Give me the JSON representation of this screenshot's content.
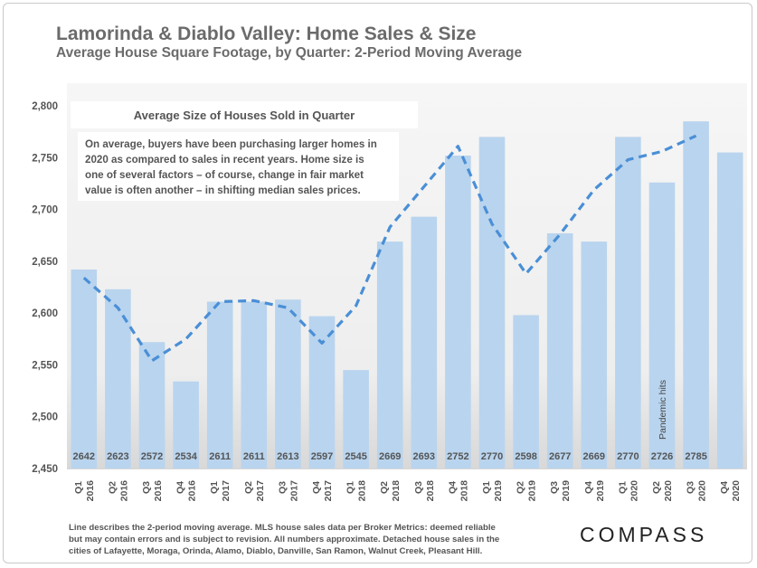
{
  "header": {
    "title": "Lamorinda & Diablo Valley: Home Sales & Size",
    "subtitle": "Average House Square Footage, by Quarter: 2-Period Moving Average"
  },
  "annotation": {
    "heading": "Average Size of Houses Sold in Quarter",
    "lines": [
      "On average, buyers have been purchasing larger homes in",
      "2020 as compared to sales in recent years. Home size is",
      "one of several factors – of course, change in fair market",
      "value is often another – in shifting median sales prices."
    ],
    "event_label": "Pandemic hits"
  },
  "footer": {
    "note_lines": [
      "Line describes the 2-period moving average. MLS house sales data per Broker Metrics:  deemed reliable",
      "but may contain errors and is subject to revision. All numbers approximate. Detached house sales in the",
      "cities of Lafayette, Moraga, Orinda, Alamo, Diablo, Danville, San Ramon, Walnut Creek, Pleasant Hill."
    ],
    "logo": "COMPASS"
  },
  "colors": {
    "bar": "#b9d4ee",
    "line": "#4a8fd6",
    "plot_bg": "#f2f2f2",
    "text": "#6b6b6b"
  },
  "chart_data": {
    "type": "bar",
    "categories": [
      [
        "Q1",
        "2016"
      ],
      [
        "Q2",
        "2016"
      ],
      [
        "Q3",
        "2016"
      ],
      [
        "Q4",
        "2016"
      ],
      [
        "Q1",
        "2017"
      ],
      [
        "Q2",
        "2017"
      ],
      [
        "Q3",
        "2017"
      ],
      [
        "Q4",
        "2017"
      ],
      [
        "Q1",
        "2018"
      ],
      [
        "Q2",
        "2018"
      ],
      [
        "Q3",
        "2018"
      ],
      [
        "Q4",
        "2018"
      ],
      [
        "Q1",
        "2019"
      ],
      [
        "Q2",
        "2019"
      ],
      [
        "Q3",
        "2019"
      ],
      [
        "Q4",
        "2019"
      ],
      [
        "Q1",
        "2020"
      ],
      [
        "Q2",
        "2020"
      ],
      [
        "Q3",
        "2020"
      ],
      [
        "Q4",
        "2020"
      ]
    ],
    "values": [
      2642,
      2623,
      2572,
      2534,
      2611,
      2611,
      2613,
      2597,
      2545,
      2669,
      2693,
      2752,
      2770,
      2598,
      2677,
      2669,
      2770,
      2726,
      2785,
      2755
    ],
    "data_labels": [
      "2642",
      "2623",
      "2572",
      "2534",
      "2611",
      "2611",
      "2613",
      "2597",
      "2545",
      "2669",
      "2693",
      "2752",
      "2770",
      "2598",
      "2677",
      "2669",
      "2770",
      "2726",
      "2785",
      ""
    ],
    "moving_average": {
      "style": "dashed",
      "values": [
        2634,
        2605,
        2554,
        2575,
        2611,
        2612,
        2605,
        2571,
        2607,
        2683,
        2722,
        2761,
        2686,
        2638,
        2676,
        2719,
        2748,
        2756,
        2771,
        null
      ]
    },
    "ylim": [
      2450,
      2800
    ],
    "yticks": [
      2450,
      2500,
      2550,
      2600,
      2650,
      2700,
      2750,
      2800
    ],
    "ytick_labels": [
      "2,450",
      "2,500",
      "2,550",
      "2,600",
      "2,650",
      "2,700",
      "2,750",
      "2,800"
    ],
    "grid": false,
    "event_index": 17
  }
}
